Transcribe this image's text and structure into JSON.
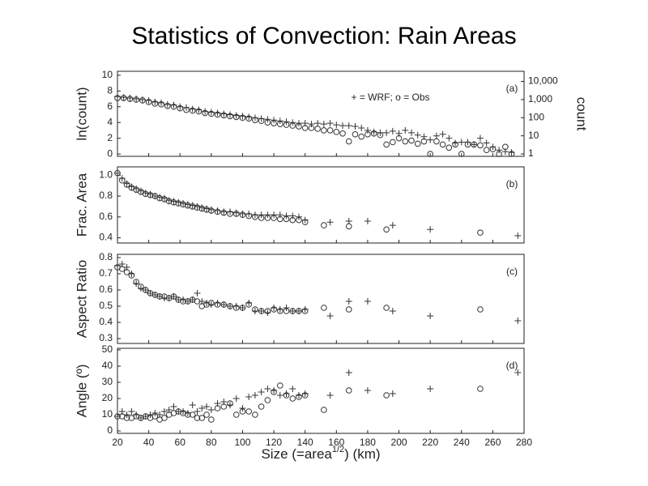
{
  "title": "Statistics of Convection: Rain Areas",
  "xlabel": [
    "Size (=area",
    "1/2",
    ") (km)"
  ],
  "chart_data": [
    {
      "type": "scatter",
      "panel_label": "(a)",
      "ylabel": "ln(count)",
      "y2label": "count",
      "annotation": "+ = WRF; o = Obs",
      "xlim": [
        20,
        280
      ],
      "xticks": [
        20,
        40,
        60,
        80,
        100,
        120,
        140,
        160,
        180,
        200,
        220,
        240,
        260,
        280
      ],
      "ylim": [
        -0.3,
        10.5
      ],
      "yticks": [
        0,
        2,
        4,
        6,
        8,
        10
      ],
      "y2lim": [
        0.74,
        36316
      ],
      "y2log": true,
      "y2ticks": [
        1,
        10,
        100,
        {
          "value": 1000,
          "label": "1,000"
        },
        {
          "value": 10000,
          "label": "10,000"
        }
      ],
      "x": [
        20,
        24,
        28,
        32,
        36,
        40,
        44,
        48,
        52,
        56,
        60,
        64,
        68,
        72,
        76,
        80,
        84,
        88,
        92,
        96,
        100,
        104,
        108,
        112,
        116,
        120,
        124,
        128,
        132,
        136,
        140,
        144,
        148,
        152,
        156,
        160,
        164,
        168,
        172,
        176,
        180,
        184,
        188,
        192,
        196,
        200,
        204,
        208,
        212,
        216,
        220,
        224,
        228,
        232,
        236,
        240,
        244,
        248,
        252,
        256,
        260,
        264,
        268,
        272
      ],
      "series": [
        {
          "marker": "o",
          "color": "#333333",
          "values": [
            7.1,
            7.1,
            7.0,
            6.9,
            6.8,
            6.6,
            6.4,
            6.3,
            6.1,
            6.0,
            5.8,
            5.6,
            5.5,
            5.4,
            5.2,
            5.1,
            5.0,
            4.9,
            4.8,
            4.7,
            4.6,
            4.5,
            4.3,
            4.2,
            4.0,
            3.9,
            3.8,
            3.7,
            3.6,
            3.5,
            3.3,
            3.3,
            3.2,
            3.0,
            3.0,
            2.8,
            2.6,
            1.6,
            2.5,
            2.2,
            2.5,
            2.6,
            2.4,
            1.2,
            1.5,
            2.0,
            1.6,
            1.7,
            1.3,
            1.6,
            0,
            1.6,
            1.2,
            0.8,
            1.2,
            0,
            1.2,
            1.2,
            1.1,
            0.5,
            0.6,
            0,
            0.9,
            0
          ]
        },
        {
          "marker": "+",
          "color": "#333333",
          "values": [
            7.3,
            7.2,
            7.1,
            7.0,
            6.9,
            6.8,
            6.6,
            6.5,
            6.3,
            6.2,
            6.0,
            5.9,
            5.7,
            5.6,
            5.4,
            5.3,
            5.2,
            5.1,
            5.0,
            4.9,
            4.8,
            4.7,
            4.6,
            4.5,
            4.4,
            4.3,
            4.2,
            4.1,
            4.0,
            3.9,
            3.9,
            3.8,
            3.9,
            3.8,
            3.9,
            3.7,
            3.6,
            3.6,
            3.5,
            3.3,
            3.0,
            2.8,
            2.7,
            2.7,
            2.9,
            2.6,
            3.0,
            2.7,
            2.4,
            2.2,
            1.8,
            2.3,
            2.5,
            2.0,
            1.4,
            1.5,
            1.5,
            1.2,
            2.0,
            1.4,
            0.9,
            0.5,
            0.3,
            0.2
          ]
        }
      ]
    },
    {
      "type": "scatter",
      "panel_label": "(b)",
      "ylabel": "Frac. Area",
      "xlim": [
        20,
        280
      ],
      "xticks": [
        20,
        40,
        60,
        80,
        100,
        120,
        140,
        160,
        180,
        200,
        220,
        240,
        260,
        280
      ],
      "ylim": [
        0.35,
        1.08
      ],
      "yticks": [
        0.4,
        0.6,
        0.8,
        {
          "value": 1,
          "label": "1.0"
        }
      ],
      "x": [
        20,
        23,
        26,
        29,
        32,
        35,
        38,
        41,
        44,
        47,
        50,
        53,
        56,
        59,
        62,
        65,
        68,
        71,
        74,
        77,
        80,
        84,
        88,
        92,
        96,
        100,
        104,
        108,
        112,
        116,
        120,
        124,
        128,
        132,
        136,
        140,
        152,
        156,
        168,
        180,
        192,
        196,
        220,
        252,
        276
      ],
      "series": [
        {
          "marker": "o",
          "color": "#333333",
          "values": [
            1.02,
            0.95,
            0.91,
            0.88,
            0.86,
            0.84,
            0.82,
            0.81,
            0.8,
            0.78,
            0.77,
            0.75,
            0.74,
            0.73,
            0.72,
            0.71,
            0.7,
            0.69,
            0.68,
            0.67,
            0.66,
            0.65,
            0.64,
            0.63,
            0.63,
            0.62,
            0.61,
            0.6,
            0.59,
            0.59,
            0.59,
            0.58,
            0.58,
            0.57,
            0.57,
            0.55,
            0.52,
            null,
            0.51,
            null,
            0.48,
            null,
            null,
            0.45,
            null
          ]
        },
        {
          "marker": "+",
          "color": "#333333",
          "values": [
            1.02,
            0.97,
            0.92,
            0.89,
            0.87,
            0.85,
            0.83,
            0.82,
            0.8,
            0.79,
            0.78,
            0.76,
            0.75,
            0.74,
            0.73,
            0.72,
            0.71,
            0.7,
            0.69,
            0.68,
            0.67,
            0.66,
            0.65,
            0.65,
            0.64,
            0.63,
            0.63,
            0.62,
            0.62,
            0.62,
            0.62,
            0.62,
            0.61,
            0.61,
            0.6,
            0.57,
            null,
            0.55,
            0.56,
            0.56,
            null,
            0.52,
            0.48,
            null,
            0.42
          ]
        }
      ]
    },
    {
      "type": "scatter",
      "panel_label": "(c)",
      "ylabel": "Aspect Ratio",
      "xlim": [
        20,
        280
      ],
      "xticks": [
        20,
        40,
        60,
        80,
        100,
        120,
        140,
        160,
        180,
        200,
        220,
        240,
        260,
        280
      ],
      "ylim": [
        0.27,
        0.82
      ],
      "yticks": [
        0.3,
        0.4,
        0.5,
        0.6,
        0.7,
        0.8
      ],
      "x": [
        20,
        23,
        26,
        29,
        32,
        35,
        38,
        41,
        44,
        47,
        50,
        53,
        56,
        59,
        62,
        65,
        68,
        71,
        74,
        77,
        80,
        84,
        88,
        92,
        96,
        100,
        104,
        108,
        112,
        116,
        120,
        124,
        128,
        132,
        136,
        140,
        152,
        156,
        168,
        180,
        192,
        196,
        220,
        252,
        276
      ],
      "series": [
        {
          "marker": "o",
          "color": "#333333",
          "values": [
            0.74,
            0.73,
            0.71,
            0.69,
            0.65,
            0.62,
            0.6,
            0.58,
            0.57,
            0.56,
            0.56,
            0.55,
            0.56,
            0.54,
            0.53,
            0.53,
            0.54,
            0.53,
            0.5,
            0.51,
            0.52,
            0.51,
            0.51,
            0.5,
            0.49,
            0.49,
            0.51,
            0.48,
            0.47,
            0.47,
            0.48,
            0.47,
            0.47,
            0.47,
            0.47,
            0.47,
            0.49,
            null,
            0.48,
            null,
            0.49,
            null,
            null,
            0.48,
            null
          ]
        },
        {
          "marker": "+",
          "color": "#333333",
          "values": [
            0.75,
            0.76,
            0.74,
            0.7,
            0.64,
            0.61,
            0.6,
            0.58,
            0.57,
            0.56,
            0.55,
            0.55,
            0.56,
            0.54,
            0.54,
            0.53,
            0.54,
            0.58,
            0.53,
            0.52,
            0.51,
            0.52,
            0.51,
            0.5,
            0.5,
            0.49,
            0.52,
            0.47,
            0.47,
            0.46,
            0.49,
            0.48,
            0.49,
            0.47,
            0.47,
            0.48,
            null,
            0.44,
            0.53,
            0.53,
            null,
            0.47,
            0.44,
            null,
            0.41
          ]
        }
      ]
    },
    {
      "type": "scatter",
      "panel_label": "(d)",
      "ylabel": "Angle (º)",
      "xlim": [
        20,
        280
      ],
      "xticks": [
        20,
        40,
        60,
        80,
        100,
        120,
        140,
        160,
        180,
        200,
        220,
        240,
        260,
        280
      ],
      "ylim": [
        -1.5,
        51
      ],
      "yticks": [
        0,
        10,
        20,
        30,
        40,
        50
      ],
      "x": [
        20,
        23,
        26,
        29,
        32,
        35,
        38,
        41,
        44,
        47,
        50,
        53,
        56,
        59,
        62,
        65,
        68,
        71,
        74,
        77,
        80,
        84,
        88,
        92,
        96,
        100,
        104,
        108,
        112,
        116,
        120,
        124,
        128,
        132,
        136,
        140,
        152,
        156,
        168,
        180,
        192,
        196,
        220,
        252,
        276
      ],
      "series": [
        {
          "marker": "o",
          "color": "#333333",
          "values": [
            9,
            9,
            8,
            8,
            9,
            8,
            9,
            8,
            9,
            7,
            8,
            10,
            11,
            12,
            11,
            10,
            10,
            8,
            8,
            10,
            7,
            14,
            15,
            17,
            10,
            12,
            12,
            10,
            15,
            19,
            24,
            28,
            22,
            20,
            21,
            22,
            13,
            null,
            25,
            null,
            22,
            null,
            null,
            26,
            null
          ]
        },
        {
          "marker": "+",
          "color": "#333333",
          "values": [
            9,
            12,
            10,
            12,
            10,
            8,
            9,
            10,
            11,
            10,
            12,
            13,
            15,
            12,
            12,
            11,
            16,
            12,
            14,
            15,
            13,
            17,
            18,
            16,
            20,
            14,
            21,
            22,
            24,
            26,
            25,
            22,
            23,
            26,
            22,
            23,
            null,
            22,
            36,
            25,
            null,
            23,
            26,
            null,
            36
          ]
        }
      ]
    }
  ]
}
